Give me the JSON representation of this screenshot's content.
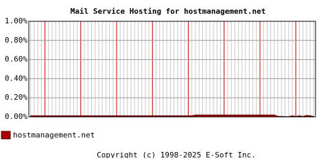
{
  "chart_data": {
    "type": "area",
    "title": "Mail Service Hosting for hostmanagement.net",
    "categories": [
      null,
      null,
      null,
      null,
      null,
      null,
      null,
      null,
      null,
      null,
      null,
      null,
      null,
      null,
      null,
      null,
      null,
      null,
      null,
      null,
      null,
      null,
      null,
      null,
      null,
      null,
      null,
      null,
      null,
      null,
      null,
      null,
      null,
      null,
      null,
      null,
      null,
      null,
      null,
      null,
      null,
      null,
      null,
      null,
      null,
      null,
      null,
      null,
      null,
      null,
      null,
      null,
      null,
      null,
      null,
      null,
      null,
      null,
      null,
      null,
      null,
      null,
      null,
      null,
      null,
      null,
      null,
      null,
      null,
      null,
      null,
      null,
      null,
      null,
      null,
      null,
      null,
      null,
      null,
      null
    ],
    "series": [
      {
        "name": "hostmanagement.net",
        "color": "#aa0000",
        "values": [
          0.012,
          0.012,
          0.012,
          0.012,
          0.012,
          0.012,
          0.012,
          0.012,
          0.012,
          0.012,
          0.012,
          0.012,
          0.012,
          0.012,
          0.012,
          0.012,
          0.012,
          0.012,
          0.012,
          0.012,
          0.012,
          0.012,
          0.012,
          0.012,
          0.012,
          0.012,
          0.012,
          0.012,
          0.012,
          0.012,
          0.012,
          0.012,
          0.012,
          0.012,
          0.012,
          0.012,
          0.012,
          0.012,
          0.012,
          0.012,
          0.012,
          0.012,
          0.012,
          0.012,
          0.012,
          0.012,
          0.02,
          0.02,
          0.02,
          0.02,
          0.02,
          0.02,
          0.02,
          0.02,
          0.02,
          0.02,
          0.02,
          0.02,
          0.02,
          0.02,
          0.02,
          0.02,
          0.02,
          0.02,
          0.02,
          0.02,
          0.02,
          0.02,
          0.02,
          0.005,
          0.005,
          0.003,
          0.003,
          0.012,
          0.005,
          0.012,
          0.005,
          0.015,
          0.012,
          0.005
        ]
      }
    ],
    "ylim": [
      0,
      1
    ],
    "yticks": [
      {
        "value": 0,
        "label": "0.00%"
      },
      {
        "value": 0.2,
        "label": "0.20%"
      },
      {
        "value": 0.4,
        "label": "0.40%"
      },
      {
        "value": 0.6,
        "label": "0.60%"
      },
      {
        "value": 0.8,
        "label": "0.80%"
      },
      {
        "value": 1,
        "label": "1.00%"
      }
    ],
    "grid": true,
    "copyright": "Copyright (c) 1998-2025 E-Soft Inc."
  }
}
